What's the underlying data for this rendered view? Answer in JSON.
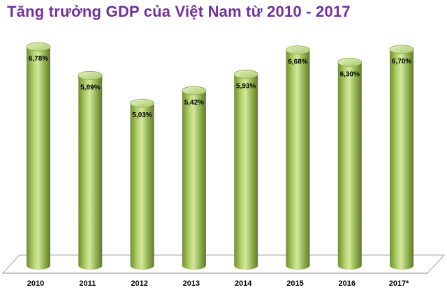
{
  "title": "Tăng trưởng GDP của Việt Nam từ 2010 - 2017",
  "colors": {
    "title": "#7030a0",
    "bar_light": "#c6de8a",
    "bar_mid": "#9bbb59",
    "bar_dark": "#5f7a2c",
    "gridline": "#a6a6a6"
  },
  "chart_data": {
    "type": "bar",
    "title": "Tăng trưởng GDP của Việt Nam từ 2010 - 2017",
    "categories": [
      "2010",
      "2011",
      "2012",
      "2013",
      "2014",
      "2015",
      "2016",
      "2017*"
    ],
    "values": [
      6.78,
      5.89,
      5.03,
      5.42,
      5.93,
      6.68,
      6.3,
      6.7
    ],
    "data_labels": [
      "6,78%",
      "5,89%",
      "5,03%",
      "5,42%",
      "5,93%",
      "6,68%",
      "6,30%",
      "6,70%"
    ],
    "xlabel": "",
    "ylabel": "",
    "ylim": [
      0,
      7.2
    ],
    "grid": false,
    "style": "3d-cylinder"
  }
}
